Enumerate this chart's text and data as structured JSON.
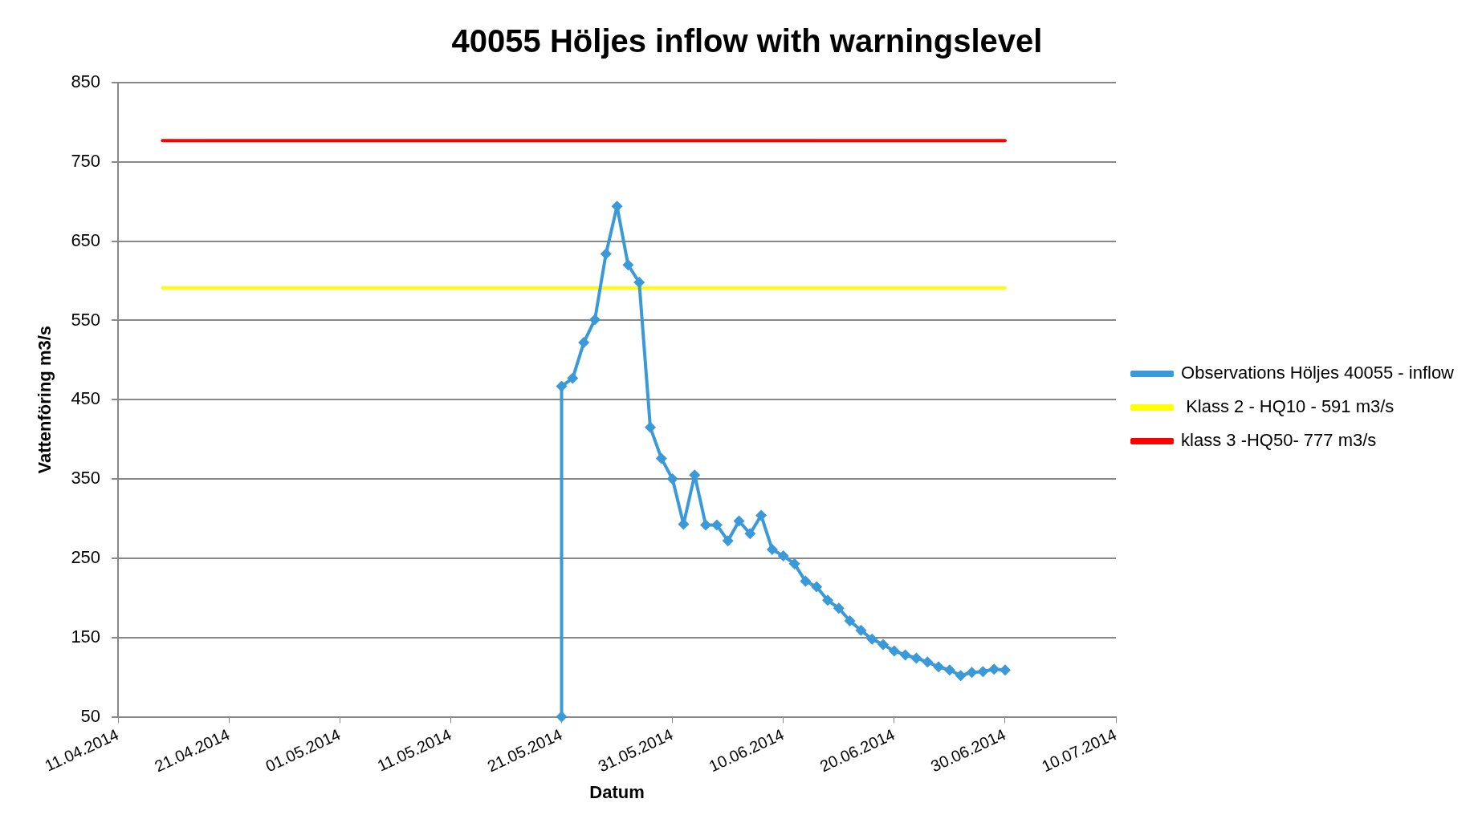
{
  "chart_data": {
    "type": "line",
    "title": "40055 Höljes inflow with warningslevel",
    "xlabel": "Datum",
    "ylabel": "Vattenföring m3/s",
    "xlim": [
      "2014-04-11",
      "2014-07-10"
    ],
    "xticks": [
      {
        "value": "2014-04-11",
        "label": "11.04.2014"
      },
      {
        "value": "2014-04-21",
        "label": "21.04.2014"
      },
      {
        "value": "2014-05-01",
        "label": "01.05.2014"
      },
      {
        "value": "2014-05-11",
        "label": "11.05.2014"
      },
      {
        "value": "2014-05-21",
        "label": "21.05.2014"
      },
      {
        "value": "2014-05-31",
        "label": "31.05.2014"
      },
      {
        "value": "2014-06-10",
        "label": "10.06.2014"
      },
      {
        "value": "2014-06-20",
        "label": "20.06.2014"
      },
      {
        "value": "2014-06-30",
        "label": "30.06.2014"
      },
      {
        "value": "2014-07-10",
        "label": "10.07.2014"
      }
    ],
    "ylim": [
      50,
      850
    ],
    "yticks": [
      50,
      150,
      250,
      350,
      450,
      550,
      650,
      750,
      850
    ],
    "grid": "y",
    "legend": "right",
    "series": [
      {
        "name": "Observations Höljes 40055 - inflow",
        "color": "#3a9ad9",
        "marker": "diamond",
        "x": [
          "2014-05-21",
          "2014-05-21",
          "2014-05-22",
          "2014-05-23",
          "2014-05-24",
          "2014-05-25",
          "2014-05-26",
          "2014-05-27",
          "2014-05-28",
          "2014-05-29",
          "2014-05-30",
          "2014-05-31",
          "2014-06-01",
          "2014-06-02",
          "2014-06-03",
          "2014-06-04",
          "2014-06-05",
          "2014-06-06",
          "2014-06-07",
          "2014-06-08",
          "2014-06-09",
          "2014-06-10",
          "2014-06-11",
          "2014-06-12",
          "2014-06-13",
          "2014-06-14",
          "2014-06-15",
          "2014-06-16",
          "2014-06-17",
          "2014-06-18",
          "2014-06-19",
          "2014-06-20",
          "2014-06-21",
          "2014-06-22",
          "2014-06-23",
          "2014-06-24",
          "2014-06-25",
          "2014-06-26",
          "2014-06-27",
          "2014-06-28",
          "2014-06-29",
          "2014-06-30"
        ],
        "values": [
          50,
          467,
          477,
          522,
          551,
          634,
          694,
          620,
          598,
          415,
          376,
          350,
          293,
          355,
          292,
          292,
          272,
          297,
          281,
          304,
          261,
          253,
          243,
          221,
          214,
          197,
          187,
          171,
          159,
          148,
          141,
          133,
          128,
          124,
          119,
          113,
          109,
          102,
          106,
          107,
          110,
          109
        ]
      },
      {
        "name": " Klass 2 - HQ10 - 591 m3/s",
        "color": "#ffff00",
        "marker": "none",
        "x": [
          "2014-04-15",
          "2014-06-30"
        ],
        "values": [
          591,
          591
        ]
      },
      {
        "name": "klass 3 -HQ50- 777 m3/s",
        "color": "#ff0000",
        "marker": "none",
        "x": [
          "2014-04-15",
          "2014-06-30"
        ],
        "values": [
          777,
          777
        ]
      }
    ]
  }
}
